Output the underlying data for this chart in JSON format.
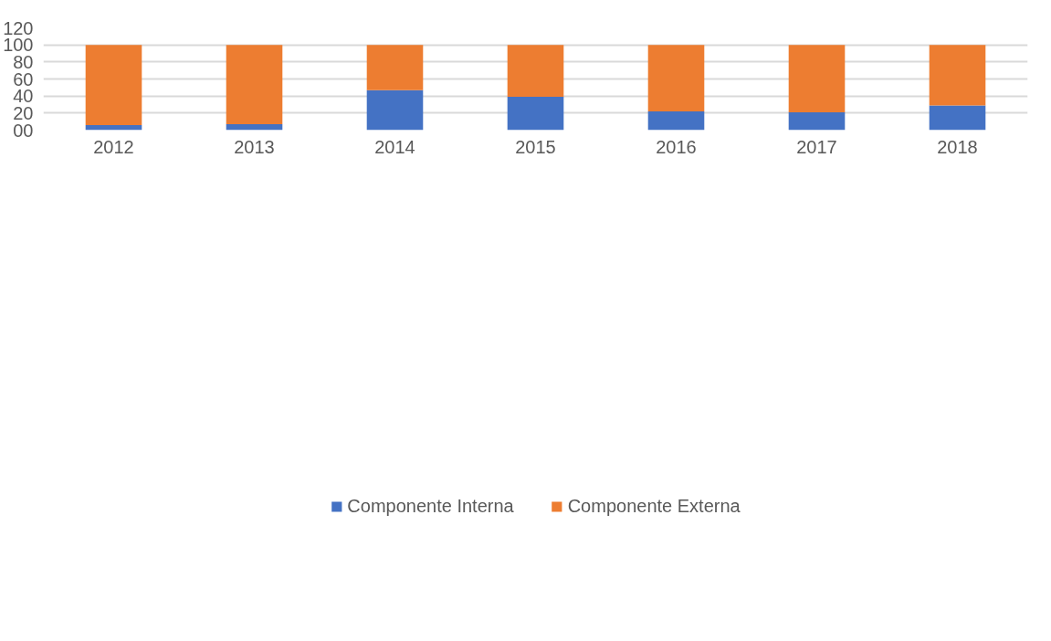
{
  "chart_data": {
    "type": "bar",
    "stacked": true,
    "categories": [
      "2012",
      "2013",
      "2014",
      "2015",
      "2016",
      "2017",
      "2018"
    ],
    "series": [
      {
        "name": "Componente Interna",
        "color": "#4472c4",
        "values": [
          6,
          7,
          47,
          39,
          22,
          21,
          29
        ]
      },
      {
        "name": "Componente Externa",
        "color": "#ed7d31",
        "values": [
          94,
          93,
          53,
          61,
          78,
          79,
          71
        ]
      }
    ],
    "ylim": [
      0,
      120
    ],
    "yticks": [
      {
        "value": 0,
        "label": "00"
      },
      20,
      40,
      60,
      80,
      100,
      120
    ],
    "grid": "y",
    "legend": "bottom"
  }
}
